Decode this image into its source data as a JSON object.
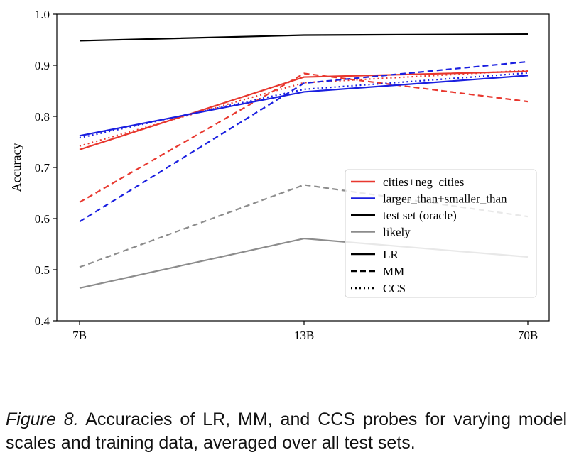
{
  "chart_data": {
    "type": "line",
    "categories": [
      "7B",
      "13B",
      "70B"
    ],
    "ylabel": "Accuracy",
    "xlabel": "",
    "ylim": [
      0.4,
      1.0
    ],
    "yticks": [
      "0.4",
      "0.5",
      "0.6",
      "0.7",
      "0.8",
      "0.9",
      "1.0"
    ],
    "yticks_values": [
      0.4,
      0.5,
      0.6,
      0.7,
      0.8,
      0.9,
      1.0
    ],
    "grid": false,
    "legend_position": "center-right",
    "colors": {
      "cities+neg_cities": "#e8372e",
      "larger_than+smaller_than": "#1a1fe0",
      "test set (oracle)": "#000000",
      "likely": "#8c8c8c"
    },
    "series": [
      {
        "name": "cities+neg_cities",
        "probe": "LR",
        "values": [
          0.735,
          0.877,
          0.888
        ]
      },
      {
        "name": "cities+neg_cities",
        "probe": "MM",
        "values": [
          0.632,
          0.884,
          0.829
        ]
      },
      {
        "name": "cities+neg_cities",
        "probe": "CCS",
        "values": [
          0.742,
          0.866,
          0.89
        ]
      },
      {
        "name": "larger_than+smaller_than",
        "probe": "LR",
        "values": [
          0.762,
          0.848,
          0.88
        ]
      },
      {
        "name": "larger_than+smaller_than",
        "probe": "MM",
        "values": [
          0.594,
          0.865,
          0.907
        ]
      },
      {
        "name": "larger_than+smaller_than",
        "probe": "CCS",
        "values": [
          0.758,
          0.853,
          0.885
        ]
      },
      {
        "name": "test set (oracle)",
        "probe": "LR",
        "values": [
          0.948,
          0.959,
          0.961
        ]
      },
      {
        "name": "likely",
        "probe": "LR",
        "values": [
          0.464,
          0.561,
          0.525
        ]
      },
      {
        "name": "likely",
        "probe": "MM",
        "values": [
          0.505,
          0.666,
          0.604
        ]
      }
    ],
    "legend": {
      "datasets": [
        "cities+neg_cities",
        "larger_than+smaller_than",
        "test set (oracle)",
        "likely"
      ],
      "probes": [
        "LR",
        "MM",
        "CCS"
      ]
    }
  },
  "caption": {
    "label": "Figure 8.",
    "text": "Accuracies of LR, MM, and CCS probes for varying model scales and training data, averaged over all test sets."
  }
}
